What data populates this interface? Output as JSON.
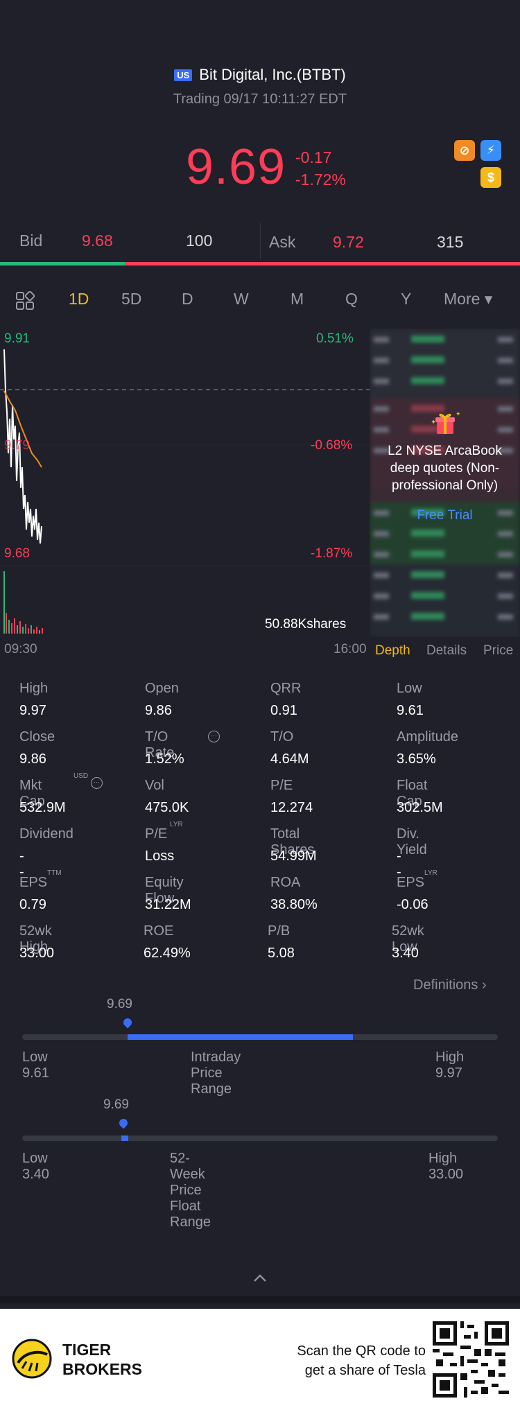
{
  "header": {
    "market_badge": "US",
    "title": "Bit Digital, Inc.(BTBT)",
    "status": "Trading 09/17 10:11:27 EDT",
    "price": "9.69",
    "change_abs": "-0.17",
    "change_pct": "-1.72%"
  },
  "bidask": {
    "bid_label": "Bid",
    "bid_price": "9.68",
    "bid_size": "100",
    "ask_label": "Ask",
    "ask_price": "9.72",
    "ask_size": "315",
    "bid_fraction": 0.24
  },
  "tabs": [
    "1D",
    "5D",
    "D",
    "W",
    "M",
    "Q",
    "Y",
    "More ▾"
  ],
  "active_tab": "1D",
  "chart": {
    "high_label": "9.91",
    "mid_label": "9.79",
    "low_label": "9.68",
    "pct_top": "0.51%",
    "pct_mid": "-0.68%",
    "pct_low": "-1.87%",
    "volume": "50.88Kshares",
    "time_start": "09:30",
    "time_end": "16:00"
  },
  "depth": {
    "promo": "L2 NYSE ArcaBook deep quotes (Non-professional Only)",
    "free_trial": "Free Trial",
    "tabs": [
      "Depth",
      "Details",
      "Price"
    ]
  },
  "stats": [
    [
      {
        "label": "High",
        "value": "9.97"
      },
      {
        "label": "Open",
        "value": "9.86"
      },
      {
        "label": "QRR",
        "value": "0.91"
      },
      {
        "label": "Low",
        "value": "9.61"
      }
    ],
    [
      {
        "label": "Close",
        "value": "9.86"
      },
      {
        "label": "T/O Rate",
        "value": "1.52%"
      },
      {
        "label": "T/O",
        "value": "4.64M"
      },
      {
        "label": "Amplitude",
        "value": "3.65%"
      }
    ],
    [
      {
        "label": "Mkt Cap",
        "value": "532.9M"
      },
      {
        "label": "Vol",
        "value": "475.0K"
      },
      {
        "label": "P/E",
        "value": "12.274"
      },
      {
        "label": "Float Cap",
        "value": "302.5M"
      }
    ],
    [
      {
        "label": "Dividend",
        "value": "--"
      },
      {
        "label": "P/E",
        "value": "Loss"
      },
      {
        "label": "Total Shares",
        "value": "54.99M"
      },
      {
        "label": "Div. Yield",
        "value": "--"
      }
    ],
    [
      {
        "label": "EPS",
        "value": "0.79"
      },
      {
        "label": "Equity Flow",
        "value": "31.22M"
      },
      {
        "label": "ROA",
        "value": "38.80%"
      },
      {
        "label": "EPS",
        "value": "-0.06"
      }
    ],
    [
      {
        "label": "52wk High",
        "value": "33.00"
      },
      {
        "label": "ROE",
        "value": "62.49%"
      },
      {
        "label": "P/B",
        "value": "5.08"
      },
      {
        "label": "52wk Low",
        "value": "3.40"
      }
    ]
  ],
  "stat_sups": {
    "usd": "USD",
    "lyr": "LYR",
    "ttm": "TTM"
  },
  "definitions": "Definitions",
  "intraday": {
    "value": "9.69",
    "low": "Low 9.61",
    "title": "Intraday Price Range",
    "high": "High 9.97",
    "fill_start": 0.0,
    "fill_end": 0.0
  },
  "week52": {
    "value": "9.69",
    "low": "Low 3.40",
    "title": "52-Week Price Float Range",
    "high": "High 33.00"
  },
  "footer": {
    "brand_line1": "TIGER",
    "brand_line2": "BROKERS",
    "cta_line1": "Scan the QR code to",
    "cta_line2": "get a share of Tesla"
  },
  "colors": {
    "accent": "#f5b917",
    "up": "#2ab97a",
    "down": "#ff3d57",
    "blue": "#3b6cf6"
  }
}
